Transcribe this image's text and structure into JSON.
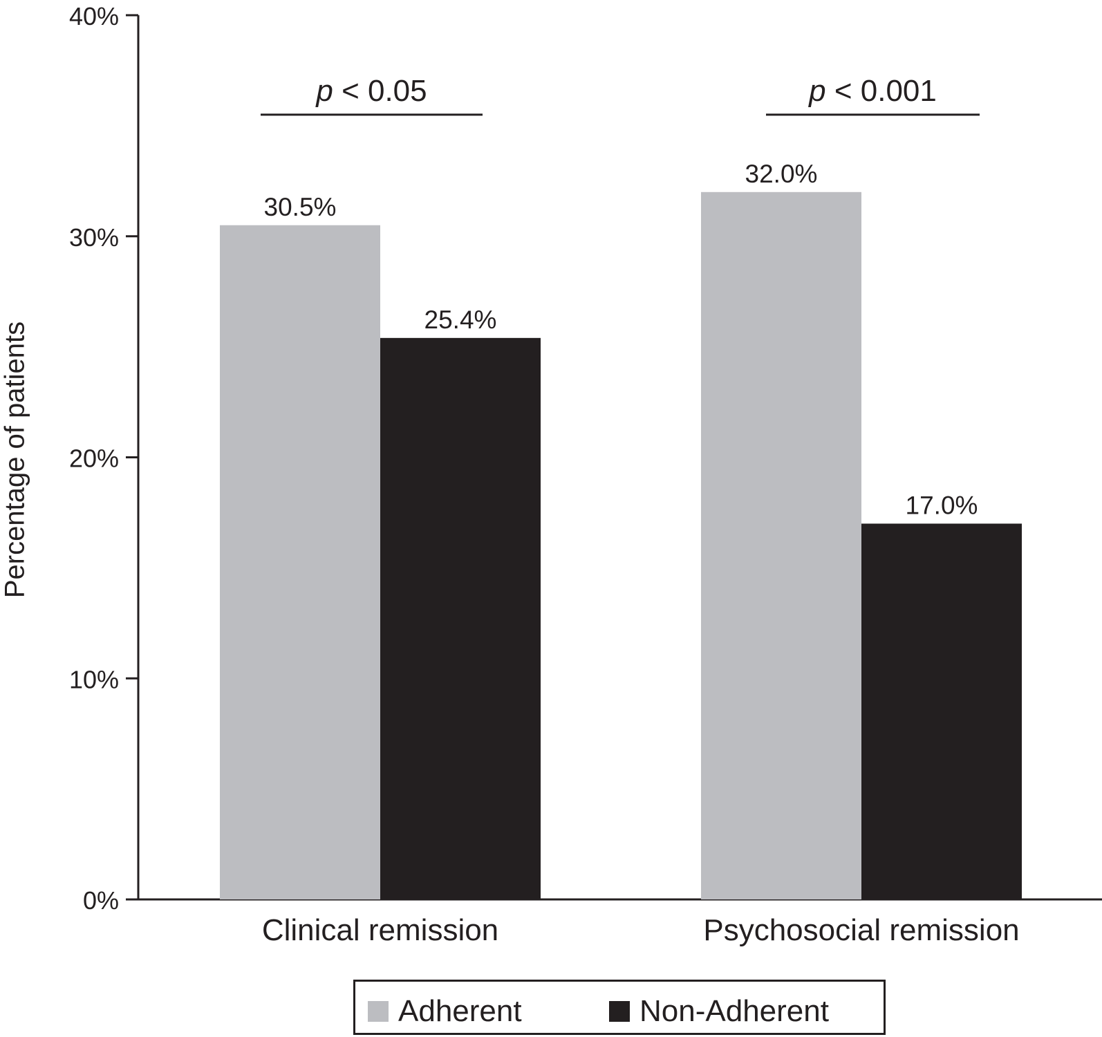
{
  "chart_data": {
    "type": "bar",
    "title": "",
    "xlabel": "",
    "ylabel": "Percentage of patients",
    "ylim": [
      0,
      40
    ],
    "yticks": [
      "0%",
      "10%",
      "20%",
      "30%",
      "40%"
    ],
    "ytick_values": [
      0,
      10,
      20,
      30,
      40
    ],
    "categories": [
      "Clinical remission",
      "Psychosocial remission"
    ],
    "series": [
      {
        "name": "Adherent",
        "values": [
          30.5,
          32.0
        ],
        "labels": [
          "30.5%",
          "32.0%"
        ],
        "color": "#bcbdc1"
      },
      {
        "name": "Non-Adherent",
        "values": [
          25.4,
          17.0
        ],
        "labels": [
          "25.4%",
          "17.0%"
        ],
        "color": "#231f20"
      }
    ],
    "significance": [
      {
        "p_symbol": "p",
        "text": " < 0.05",
        "y": 35.5
      },
      {
        "p_symbol": "p",
        "text": " < 0.001",
        "y": 35.5
      }
    ],
    "grid": false,
    "legend_position": "bottom"
  }
}
